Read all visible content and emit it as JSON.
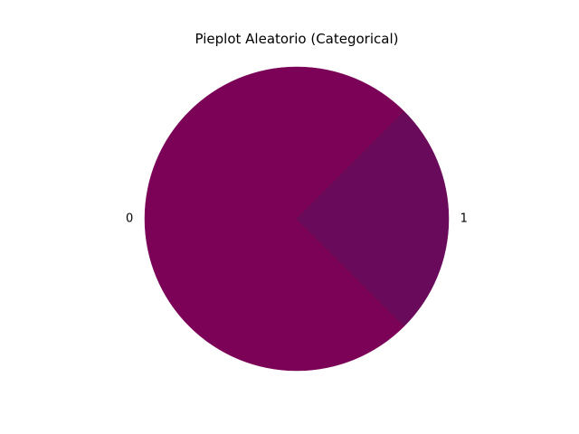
{
  "chart_data": {
    "type": "pie",
    "title": "Pieplot Aleatorio (Categorical)",
    "categories": [
      "0",
      "1"
    ],
    "values": [
      75,
      25
    ],
    "colors": [
      "#7b0257",
      "#6a0a5a"
    ],
    "start_angle_deg": 45,
    "direction": "counterclockwise",
    "legend": "none",
    "slice_labels": "outside"
  }
}
